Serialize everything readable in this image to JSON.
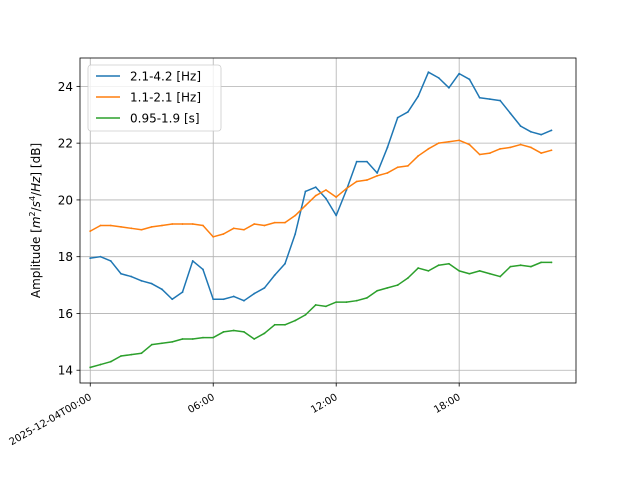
{
  "chart_data": {
    "type": "line",
    "ylabel_parts": [
      "Amplitude [",
      "m",
      "2",
      "/",
      "s",
      "4",
      "/",
      "Hz",
      "] [dB]"
    ],
    "xlim": [
      -0.5,
      23.7
    ],
    "ylim": [
      13.55,
      25.0
    ],
    "yticks": [
      14,
      16,
      18,
      20,
      22,
      24
    ],
    "ytick_labels": [
      "14",
      "16",
      "18",
      "20",
      "22",
      "24"
    ],
    "xticks": [
      0,
      6,
      12,
      18
    ],
    "xtick_labels": [
      "2025-12-04T00:00",
      "06:00",
      "12:00",
      "18:00"
    ],
    "grid": true,
    "legend_position": "upper-left",
    "x": [
      0,
      0.5,
      1,
      1.5,
      2,
      2.5,
      3,
      3.5,
      4,
      4.5,
      5,
      5.5,
      6,
      6.5,
      7,
      7.5,
      8,
      8.5,
      9,
      9.5,
      10,
      10.5,
      11,
      11.5,
      12,
      12.5,
      13,
      13.5,
      14,
      14.5,
      15,
      15.5,
      16,
      16.5,
      17,
      17.5,
      18,
      18.5,
      19,
      19.5,
      20,
      20.5,
      21,
      21.5,
      22,
      22.5
    ],
    "series": [
      {
        "name": "2.1-4.2 [Hz]",
        "color": "#1f77b4",
        "values": [
          17.95,
          18.0,
          17.85,
          17.4,
          17.3,
          17.15,
          17.05,
          16.85,
          16.5,
          16.75,
          17.85,
          17.55,
          16.5,
          16.5,
          16.6,
          16.45,
          16.7,
          16.9,
          17.35,
          17.75,
          18.8,
          20.3,
          20.45,
          20.05,
          19.45,
          20.35,
          21.35,
          21.35,
          20.95,
          21.85,
          22.9,
          23.1,
          23.65,
          24.5,
          24.3,
          23.95,
          24.45,
          24.25,
          23.6,
          23.55,
          23.5,
          23.05,
          22.6,
          22.4,
          22.3,
          22.45
        ]
      },
      {
        "name": "1.1-2.1 [Hz]",
        "color": "#ff7f0e",
        "values": [
          18.9,
          19.1,
          19.1,
          19.05,
          19.0,
          18.95,
          19.05,
          19.1,
          19.15,
          19.15,
          19.15,
          19.1,
          18.7,
          18.8,
          19.0,
          18.95,
          19.15,
          19.1,
          19.2,
          19.2,
          19.45,
          19.8,
          20.15,
          20.35,
          20.1,
          20.4,
          20.65,
          20.7,
          20.85,
          20.95,
          21.15,
          21.2,
          21.55,
          21.8,
          22.0,
          22.05,
          22.1,
          21.95,
          21.6,
          21.65,
          21.8,
          21.85,
          21.95,
          21.85,
          21.65,
          21.75
        ]
      },
      {
        "name": "0.95-1.9 [s]",
        "color": "#2ca02c",
        "values": [
          14.1,
          14.2,
          14.3,
          14.5,
          14.55,
          14.6,
          14.9,
          14.95,
          15.0,
          15.1,
          15.1,
          15.15,
          15.15,
          15.35,
          15.4,
          15.35,
          15.1,
          15.3,
          15.6,
          15.6,
          15.75,
          15.95,
          16.3,
          16.25,
          16.4,
          16.4,
          16.45,
          16.55,
          16.8,
          16.9,
          17.0,
          17.25,
          17.6,
          17.5,
          17.7,
          17.75,
          17.5,
          17.4,
          17.5,
          17.4,
          17.3,
          17.65,
          17.7,
          17.65,
          17.8,
          17.8
        ]
      }
    ]
  }
}
